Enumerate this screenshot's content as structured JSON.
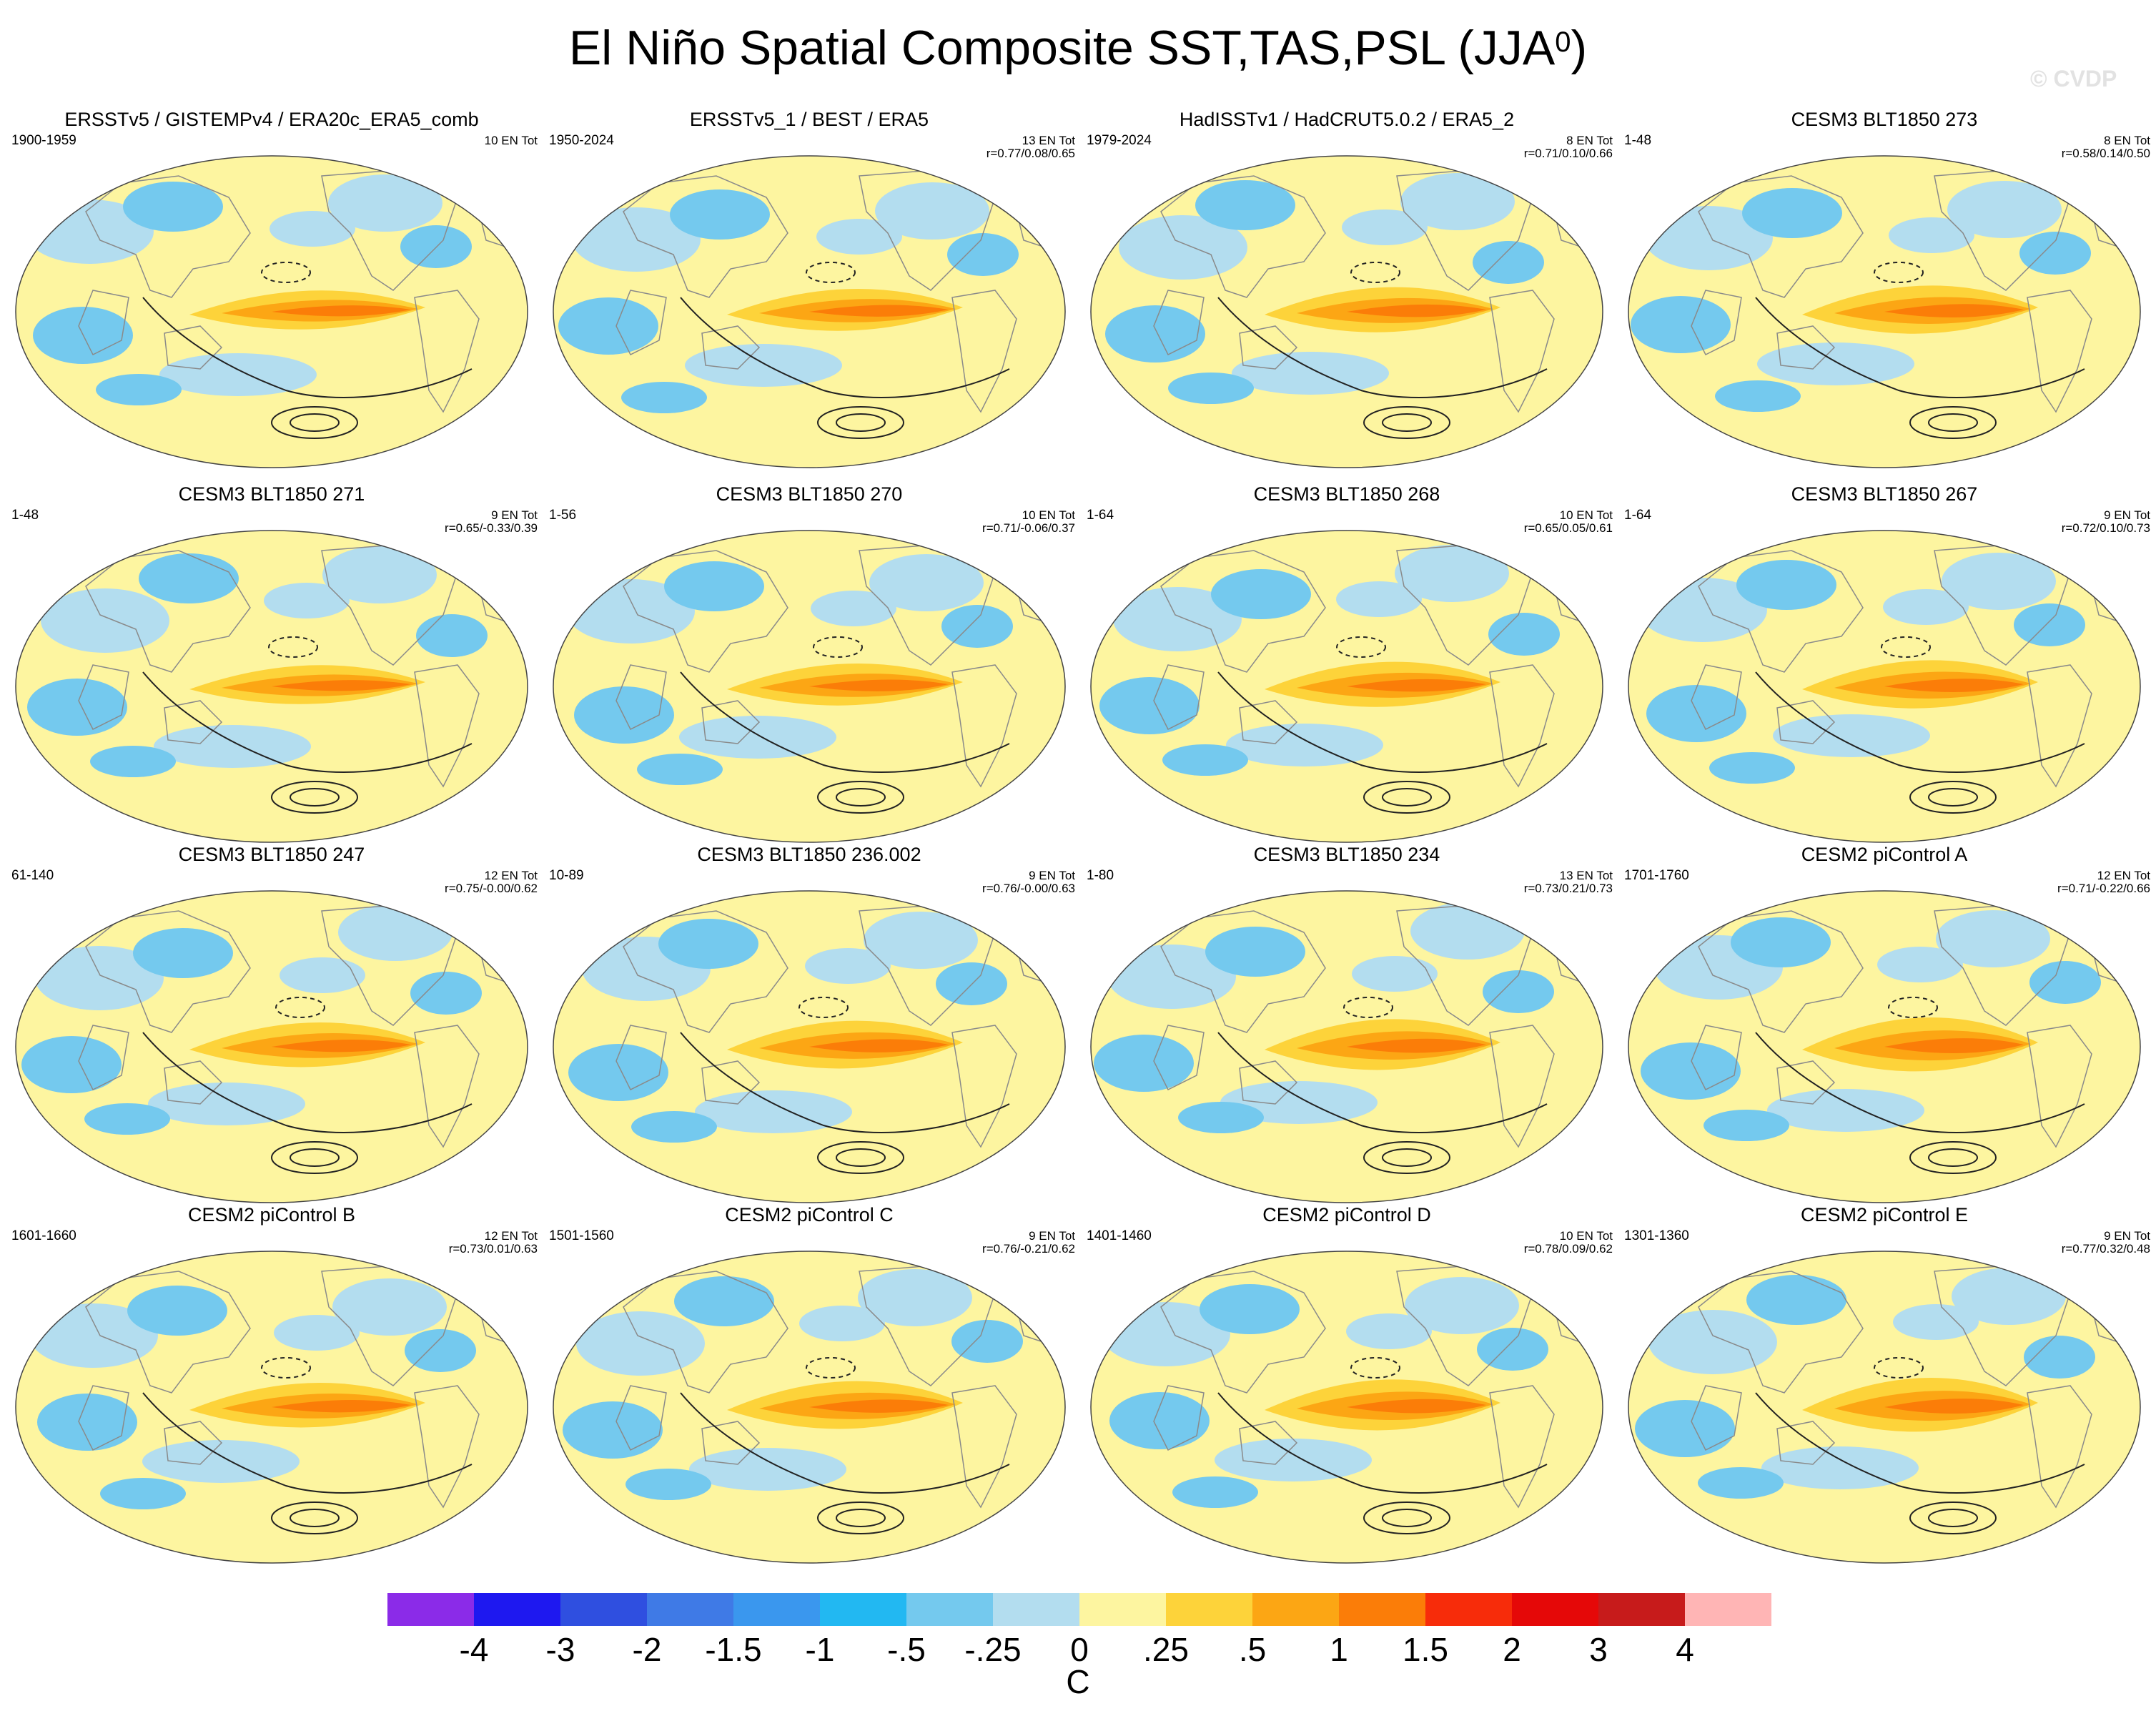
{
  "figure": {
    "title": "El Niño Spatial Composite SST,TAS,PSL (JJA",
    "title_sup": "0",
    "title_close": ")",
    "watermark": "© CVDP"
  },
  "chart_data": {
    "type": "heatmap",
    "description_variables": [
      "SST",
      "TAS",
      "PSL"
    ],
    "season": "JJA0",
    "units": "C",
    "colorbar": {
      "ticks": [
        "-4",
        "-3",
        "-2",
        "-1.5",
        "-1",
        "-.5",
        "-.25",
        "0",
        ".25",
        ".5",
        "1",
        "1.5",
        "2",
        "3",
        "4"
      ],
      "colors": [
        "#8b2be8",
        "#1e18f0",
        "#2f4fe0",
        "#3f7ae6",
        "#3a97ee",
        "#22b8f2",
        "#74c9ee",
        "#b3ddef",
        "#fdf5a0",
        "#fdd33a",
        "#fca614",
        "#fb7d08",
        "#f72c0a",
        "#e50808",
        "#c71b1b",
        "#ffb5b5"
      ]
    },
    "panels": [
      {
        "title": "ERSSTv5 / GISTEMPv4 / ERA20c_ERA5_comb",
        "years": "1900-1959",
        "count": "10 EN Tot",
        "r": ""
      },
      {
        "title": "ERSSTv5_1 / BEST / ERA5",
        "years": "1950-2024",
        "count": "13 EN Tot",
        "r": "r=0.77/0.08/0.65"
      },
      {
        "title": "HadISSTv1 / HadCRUT5.0.2 / ERA5_2",
        "years": "1979-2024",
        "count": "8 EN Tot",
        "r": "r=0.71/0.10/0.66"
      },
      {
        "title": "CESM3 BLT1850 273",
        "years": "1-48",
        "count": "8 EN Tot",
        "r": "r=0.58/0.14/0.50"
      },
      {
        "title": "CESM3 BLT1850 271",
        "years": "1-48",
        "count": "9 EN Tot",
        "r": "r=0.65/-0.33/0.39"
      },
      {
        "title": "CESM3 BLT1850 270",
        "years": "1-56",
        "count": "10 EN Tot",
        "r": "r=0.71/-0.06/0.37"
      },
      {
        "title": "CESM3 BLT1850 268",
        "years": "1-64",
        "count": "10 EN Tot",
        "r": "r=0.65/0.05/0.61"
      },
      {
        "title": "CESM3 BLT1850 267",
        "years": "1-64",
        "count": "9 EN Tot",
        "r": "r=0.72/0.10/0.73"
      },
      {
        "title": "CESM3 BLT1850 247",
        "years": "61-140",
        "count": "12 EN Tot",
        "r": "r=0.75/-0.00/0.62"
      },
      {
        "title": "CESM3 BLT1850 236.002",
        "years": "10-89",
        "count": "9 EN Tot",
        "r": "r=0.76/-0.00/0.63"
      },
      {
        "title": "CESM3 BLT1850 234",
        "years": "1-80",
        "count": "13 EN Tot",
        "r": "r=0.73/0.21/0.73"
      },
      {
        "title": "CESM2 piControl A",
        "years": "1701-1760",
        "count": "12 EN Tot",
        "r": "r=0.71/-0.22/0.66"
      },
      {
        "title": "CESM2 piControl B",
        "years": "1601-1660",
        "count": "12 EN Tot",
        "r": "r=0.73/0.01/0.63"
      },
      {
        "title": "CESM2 piControl C",
        "years": "1501-1560",
        "count": "9 EN Tot",
        "r": "r=0.76/-0.21/0.62"
      },
      {
        "title": "CESM2 piControl D",
        "years": "1401-1460",
        "count": "10 EN Tot",
        "r": "r=0.78/0.09/0.62"
      },
      {
        "title": "CESM2 piControl E",
        "years": "1301-1360",
        "count": "9 EN Tot",
        "r": "r=0.77/0.32/0.48"
      }
    ]
  }
}
